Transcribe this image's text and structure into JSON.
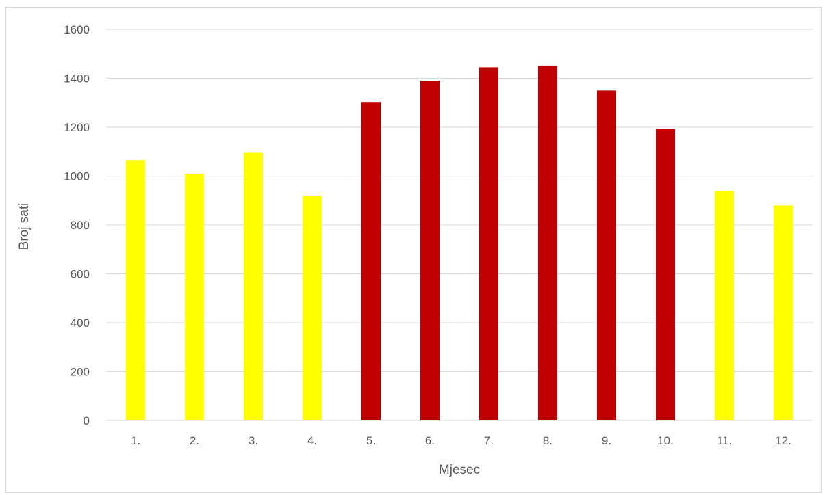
{
  "chart_data": {
    "type": "bar",
    "categories": [
      "1.",
      "2.",
      "3.",
      "4.",
      "5.",
      "6.",
      "7.",
      "8.",
      "9.",
      "10.",
      "11.",
      "12."
    ],
    "values": [
      1065,
      1010,
      1095,
      920,
      1303,
      1390,
      1445,
      1452,
      1350,
      1193,
      938,
      880
    ],
    "bar_colors": [
      "#ffff00",
      "#ffff00",
      "#ffff00",
      "#ffff00",
      "#c00000",
      "#c00000",
      "#c00000",
      "#c00000",
      "#c00000",
      "#c00000",
      "#ffff00",
      "#ffff00"
    ],
    "xlabel": "Mjesec",
    "ylabel": "Broj sati",
    "ylim": [
      0,
      1600
    ],
    "yticks": [
      0,
      200,
      400,
      600,
      800,
      1000,
      1200,
      1400,
      1600
    ],
    "grid": true,
    "gridline_color": "#d9d9d9",
    "axis_text_color": "#595959"
  }
}
